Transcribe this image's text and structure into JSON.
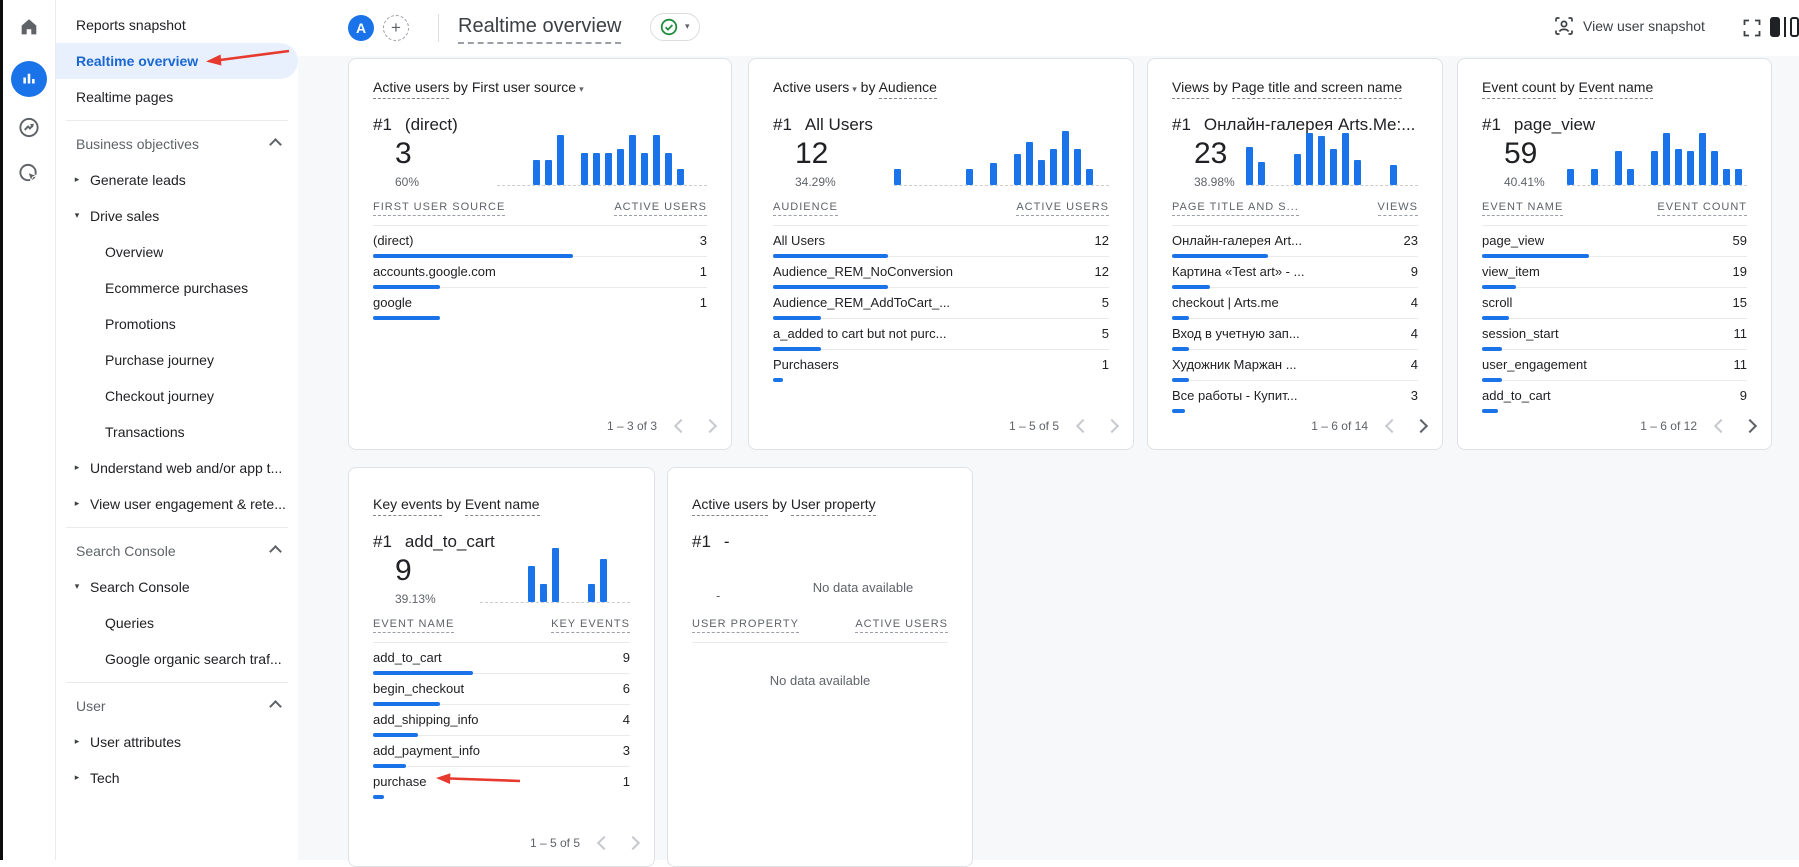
{
  "icons": {
    "plus": "+",
    "caret_down": "▾",
    "tri_right": "▸",
    "tri_down": "▾"
  },
  "colors": {
    "accent_blue": "#1a73e8",
    "selected_bg": "#e8f0fe",
    "selected_text": "#1967d2",
    "annotation_red": "#e8392f",
    "status_green": "#1e8e3e"
  },
  "topbar": {
    "avatar_letter": "A",
    "title": "Realtime overview",
    "view_user_snapshot_label": "View user snapshot"
  },
  "sidebar": {
    "items": [
      {
        "id": "reports-snapshot",
        "label": "Reports snapshot",
        "type": "top"
      },
      {
        "id": "realtime-overview",
        "label": "Realtime overview",
        "type": "top",
        "selected": true
      },
      {
        "id": "realtime-pages",
        "label": "Realtime pages",
        "type": "top"
      },
      {
        "type": "divider"
      },
      {
        "id": "business-objectives",
        "label": "Business objectives",
        "type": "section"
      },
      {
        "id": "generate-leads",
        "label": "Generate leads",
        "type": "exp",
        "expanded": false
      },
      {
        "id": "drive-sales",
        "label": "Drive sales",
        "type": "exp",
        "expanded": true
      },
      {
        "id": "overview",
        "label": "Overview",
        "type": "child"
      },
      {
        "id": "ecommerce-purchases",
        "label": "Ecommerce purchases",
        "type": "child"
      },
      {
        "id": "promotions",
        "label": "Promotions",
        "type": "child"
      },
      {
        "id": "purchase-journey",
        "label": "Purchase journey",
        "type": "child"
      },
      {
        "id": "checkout-journey",
        "label": "Checkout journey",
        "type": "child"
      },
      {
        "id": "transactions",
        "label": "Transactions",
        "type": "child"
      },
      {
        "id": "understand-web-app-traffic",
        "label": "Understand web and/or app t...",
        "type": "exp",
        "expanded": false
      },
      {
        "id": "view-user-engagement",
        "label": "View user engagement & rete...",
        "type": "exp",
        "expanded": false
      },
      {
        "type": "divider"
      },
      {
        "id": "search-console-section",
        "label": "Search Console",
        "type": "section"
      },
      {
        "id": "search-console",
        "label": "Search Console",
        "type": "exp",
        "expanded": true
      },
      {
        "id": "queries",
        "label": "Queries",
        "type": "child"
      },
      {
        "id": "google-organic-search-traffic",
        "label": "Google organic search traf...",
        "type": "child"
      },
      {
        "type": "divider"
      },
      {
        "id": "user-section",
        "label": "User",
        "type": "section"
      },
      {
        "id": "user-attributes",
        "label": "User attributes",
        "type": "exp",
        "expanded": false
      },
      {
        "id": "tech",
        "label": "Tech",
        "type": "exp",
        "expanded": false
      }
    ]
  },
  "cards": [
    {
      "id": "active-users-by-first-user-source",
      "title_parts": [
        {
          "text": "Active users",
          "underline": true
        },
        {
          "text": " by ",
          "underline": false
        },
        {
          "text": "First user source",
          "underline": false,
          "caret": true
        }
      ],
      "rank_label": "#1",
      "top_label": "(direct)",
      "big_value": "3",
      "percent": "60%",
      "sparkline": [
        0,
        0,
        0,
        1.4,
        1.4,
        2.8,
        0,
        1.8,
        1.8,
        1.8,
        2.0,
        2.8,
        1.8,
        2.8,
        1.8,
        0.9,
        0
      ],
      "columns": [
        "FIRST USER SOURCE",
        "ACTIVE USERS"
      ],
      "rows": [
        {
          "label": "(direct)",
          "value": "3",
          "bar_pct": 60
        },
        {
          "label": "accounts.google.com",
          "value": "1",
          "bar_pct": 20
        },
        {
          "label": "google",
          "value": "1",
          "bar_pct": 20
        }
      ],
      "pagination": {
        "text": "1 – 3 of 3",
        "prev_enabled": false,
        "next_enabled": false
      }
    },
    {
      "id": "active-users-by-audience",
      "title_parts": [
        {
          "text": "Active users",
          "underline": false,
          "caret": true
        },
        {
          "text": " by ",
          "underline": false
        },
        {
          "text": "Audience",
          "underline": true
        }
      ],
      "rank_label": "#1",
      "top_label": "All Users",
      "big_value": "12",
      "percent": "34.29%",
      "sparkline": [
        0.9,
        0,
        0,
        0,
        0,
        0,
        0.9,
        0,
        1.2,
        0,
        1.7,
        2.4,
        1.4,
        2.0,
        3.0,
        2.0,
        0.9
      ],
      "columns": [
        "AUDIENCE",
        "ACTIVE USERS"
      ],
      "rows": [
        {
          "label": "All Users",
          "value": "12",
          "bar_pct": 34.3
        },
        {
          "label": "Audience_REM_NoConversion",
          "value": "12",
          "bar_pct": 34.3
        },
        {
          "label": "Audience_REM_AddToCart_...",
          "value": "5",
          "bar_pct": 14.3
        },
        {
          "label": "a_added to cart but not purc...",
          "value": "5",
          "bar_pct": 14.3
        },
        {
          "label": "Purchasers",
          "value": "1",
          "bar_pct": 2.9
        }
      ],
      "pagination": {
        "text": "1 – 5 of 5",
        "prev_enabled": false,
        "next_enabled": false
      }
    },
    {
      "id": "views-by-page-title",
      "title_parts": [
        {
          "text": "Views",
          "underline": true
        },
        {
          "text": " by ",
          "underline": false
        },
        {
          "text": "Page title and screen name",
          "underline": true
        }
      ],
      "rank_label": "#1",
      "top_label": "Онлайн-галерея Arts.Me:...",
      "big_value": "23",
      "percent": "38.98%",
      "sparkline": [
        2.1,
        1.3,
        0,
        0,
        1.7,
        2.9,
        2.7,
        2.0,
        2.9,
        1.4,
        0,
        0,
        1.1,
        0
      ],
      "columns": [
        "PAGE TITLE AND S...",
        "VIEWS"
      ],
      "rows": [
        {
          "label": "Онлайн-галерея Art...",
          "value": "23",
          "bar_pct": 39
        },
        {
          "label": "Картина «Test art» - ...",
          "value": "9",
          "bar_pct": 15.3
        },
        {
          "label": "checkout | Arts.me",
          "value": "4",
          "bar_pct": 6.8
        },
        {
          "label": "Вход в учетную зап...",
          "value": "4",
          "bar_pct": 6.8
        },
        {
          "label": "Художник Маржан ...",
          "value": "4",
          "bar_pct": 6.8
        },
        {
          "label": "Все работы - Купит...",
          "value": "3",
          "bar_pct": 5.1
        }
      ],
      "pagination": {
        "text": "1 – 6 of 14",
        "prev_enabled": false,
        "next_enabled": true
      }
    },
    {
      "id": "event-count-by-event-name",
      "title_parts": [
        {
          "text": "Event count",
          "underline": true
        },
        {
          "text": " by ",
          "underline": false
        },
        {
          "text": "Event name",
          "underline": true
        }
      ],
      "rank_label": "#1",
      "top_label": "page_view",
      "big_value": "59",
      "percent": "40.41%",
      "sparkline": [
        0.9,
        0,
        0.9,
        0,
        1.9,
        0.9,
        0,
        1.9,
        2.9,
        2.0,
        1.9,
        2.9,
        1.9,
        0.9,
        0.9
      ],
      "columns": [
        "EVENT NAME",
        "EVENT COUNT"
      ],
      "rows": [
        {
          "label": "page_view",
          "value": "59",
          "bar_pct": 40.4
        },
        {
          "label": "view_item",
          "value": "19",
          "bar_pct": 13
        },
        {
          "label": "scroll",
          "value": "15",
          "bar_pct": 10.3
        },
        {
          "label": "session_start",
          "value": "11",
          "bar_pct": 7.5
        },
        {
          "label": "user_engagement",
          "value": "11",
          "bar_pct": 7.5
        },
        {
          "label": "add_to_cart",
          "value": "9",
          "bar_pct": 6.2
        }
      ],
      "pagination": {
        "text": "1 – 6 of 12",
        "prev_enabled": false,
        "next_enabled": true
      }
    },
    {
      "id": "key-events-by-event-name",
      "title_parts": [
        {
          "text": "Key events",
          "underline": true
        },
        {
          "text": " by ",
          "underline": false
        },
        {
          "text": "Event name",
          "underline": true
        }
      ],
      "rank_label": "#1",
      "top_label": "add_to_cart",
      "big_value": "9",
      "percent": "39.13%",
      "sparkline": [
        0,
        0,
        0,
        0,
        2.0,
        1.0,
        3.0,
        0,
        0,
        1.0,
        2.4,
        0
      ],
      "columns": [
        "EVENT NAME",
        "KEY EVENTS"
      ],
      "rows": [
        {
          "label": "add_to_cart",
          "value": "9",
          "bar_pct": 39.1
        },
        {
          "label": "begin_checkout",
          "value": "6",
          "bar_pct": 26.1
        },
        {
          "label": "add_shipping_info",
          "value": "4",
          "bar_pct": 17.4
        },
        {
          "label": "add_payment_info",
          "value": "3",
          "bar_pct": 13
        },
        {
          "label": "purchase",
          "value": "1",
          "bar_pct": 4.3
        }
      ],
      "pagination": {
        "text": "1 – 5 of 5",
        "prev_enabled": false,
        "next_enabled": false
      }
    },
    {
      "id": "active-users-by-user-property",
      "title_parts": [
        {
          "text": "Active users",
          "underline": true
        },
        {
          "text": " by ",
          "underline": false
        },
        {
          "text": "User property",
          "underline": true
        }
      ],
      "rank_label": "#1",
      "top_label": "-",
      "no_data": true,
      "dash": "-",
      "no_data_text": "No data available",
      "columns": [
        "USER PROPERTY",
        "ACTIVE USERS"
      ],
      "rows": []
    }
  ]
}
